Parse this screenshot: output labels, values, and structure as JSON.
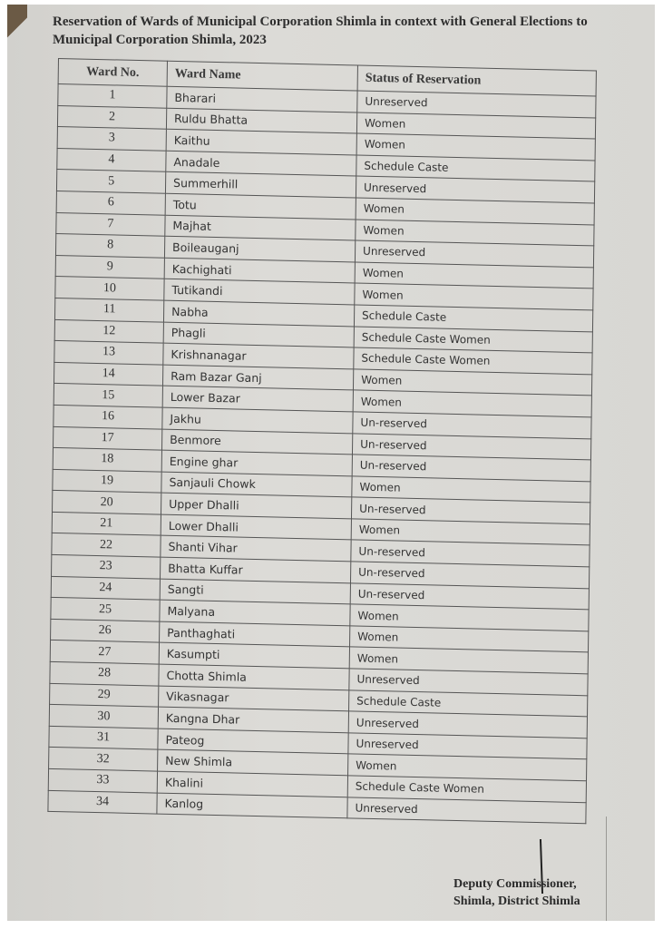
{
  "title": "Reservation of Wards of Municipal Corporation Shimla in context with General Elections to Municipal Corporation Shimla, 2023",
  "table": {
    "headers": [
      "Ward No.",
      "Ward Name",
      "Status of Reservation"
    ],
    "rows": [
      [
        "1",
        "Bharari",
        "Unreserved"
      ],
      [
        "2",
        "Ruldu Bhatta",
        "Women"
      ],
      [
        "3",
        "Kaithu",
        "Women"
      ],
      [
        "4",
        "Anadale",
        "Schedule Caste"
      ],
      [
        "5",
        "Summerhill",
        "Unreserved"
      ],
      [
        "6",
        "Totu",
        "Women"
      ],
      [
        "7",
        "Majhat",
        "Women"
      ],
      [
        "8",
        "Boileauganj",
        "Unreserved"
      ],
      [
        "9",
        "Kachighati",
        "Women"
      ],
      [
        "10",
        "Tutikandi",
        "Women"
      ],
      [
        "11",
        "Nabha",
        "Schedule Caste"
      ],
      [
        "12",
        "Phagli",
        "Schedule Caste Women"
      ],
      [
        "13",
        "Krishnanagar",
        "Schedule Caste Women"
      ],
      [
        "14",
        "Ram Bazar Ganj",
        "Women"
      ],
      [
        "15",
        "Lower Bazar",
        "Women"
      ],
      [
        "16",
        "Jakhu",
        "Un-reserved"
      ],
      [
        "17",
        "Benmore",
        "Un-reserved"
      ],
      [
        "18",
        "Engine ghar",
        "Un-reserved"
      ],
      [
        "19",
        "Sanjauli Chowk",
        "Women"
      ],
      [
        "20",
        "Upper Dhalli",
        "Un-reserved"
      ],
      [
        "21",
        "Lower Dhalli",
        "Women"
      ],
      [
        "22",
        "Shanti Vihar",
        "Un-reserved"
      ],
      [
        "23",
        "Bhatta Kuffar",
        "Un-reserved"
      ],
      [
        "24",
        "Sangti",
        "Un-reserved"
      ],
      [
        "25",
        "Malyana",
        "Women"
      ],
      [
        "26",
        "Panthaghati",
        "Women"
      ],
      [
        "27",
        "Kasumpti",
        "Women"
      ],
      [
        "28",
        "Chotta Shimla",
        "Unreserved"
      ],
      [
        "29",
        "Vikasnagar",
        "Schedule Caste"
      ],
      [
        "30",
        "Kangna Dhar",
        "Unreserved"
      ],
      [
        "31",
        "Pateog",
        "Unreserved"
      ],
      [
        "32",
        "New Shimla",
        "Women"
      ],
      [
        "33",
        "Khalini",
        "Schedule Caste Women"
      ],
      [
        "34",
        "Kanlog",
        "Unreserved"
      ]
    ]
  },
  "signatory": {
    "line1": "Deputy Commissioner,",
    "line2": "Shimla, District Shimla"
  }
}
